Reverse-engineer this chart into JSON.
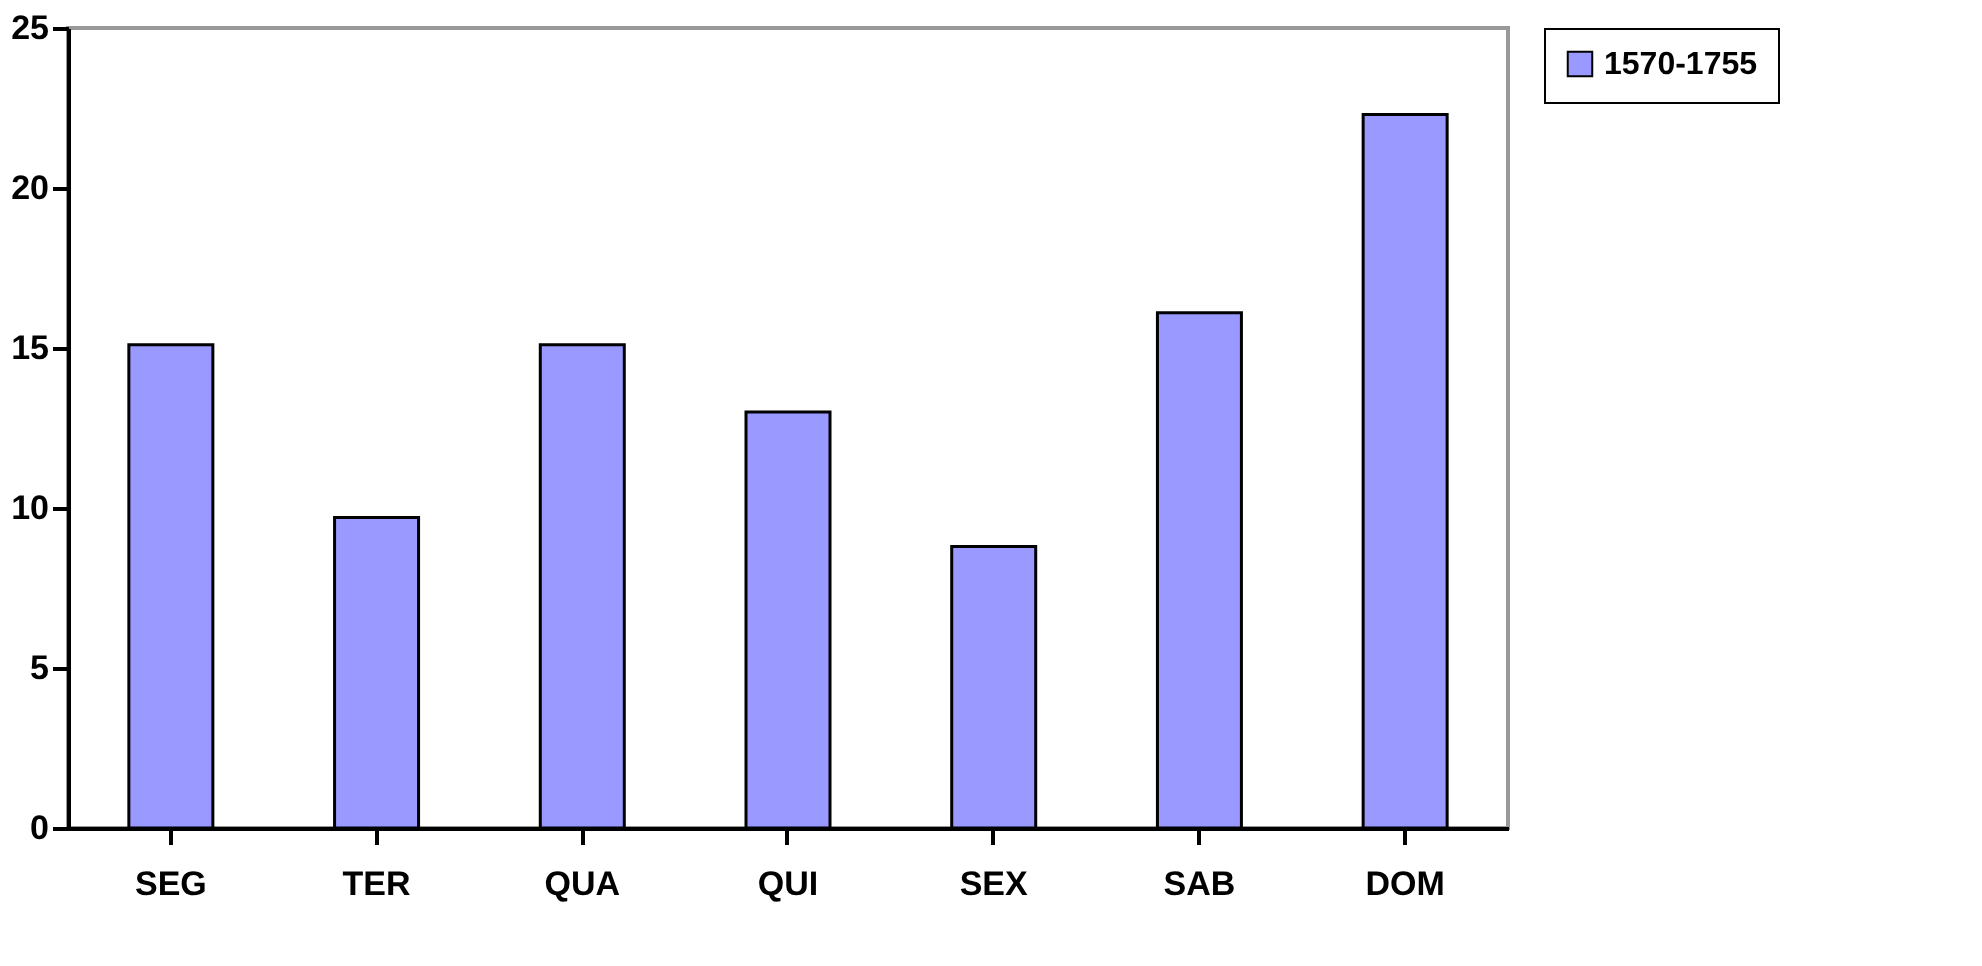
{
  "chart_data": {
    "type": "bar",
    "categories": [
      "SEG",
      "TER",
      "QUA",
      "QUI",
      "SEX",
      "SAB",
      "DOM"
    ],
    "series": [
      {
        "name": "1570-1755",
        "color": "#9999ff",
        "values": [
          15.1,
          9.7,
          15.1,
          13.0,
          8.8,
          16.1,
          22.3
        ]
      }
    ],
    "ylim": [
      0,
      25
    ],
    "yticks": [
      0,
      5,
      10,
      15,
      20,
      25
    ],
    "grid": false,
    "legend": "right"
  }
}
